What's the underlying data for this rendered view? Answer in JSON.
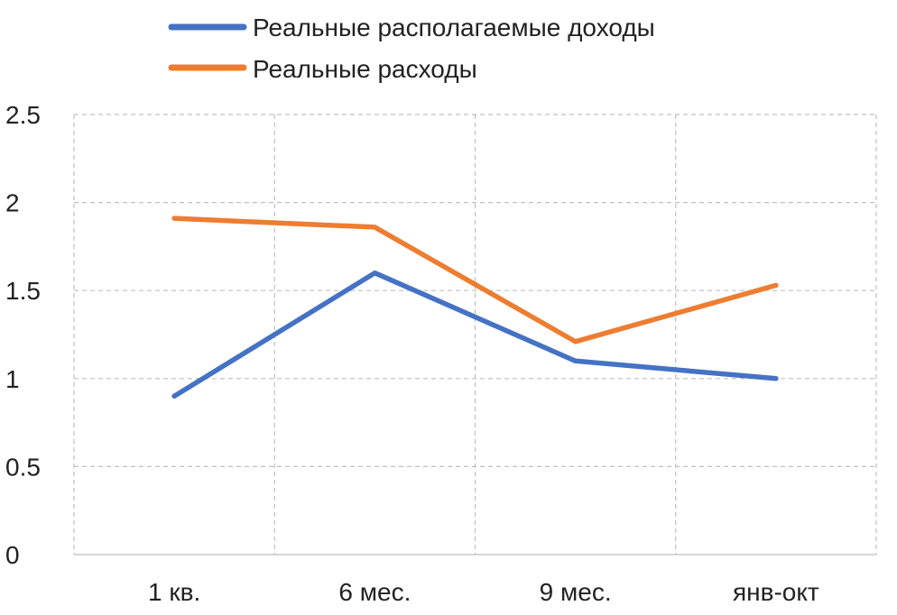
{
  "chart_data": {
    "type": "line",
    "categories": [
      "1 кв.",
      "6 мес.",
      "9 мес.",
      "янв-окт"
    ],
    "series": [
      {
        "name": "Реальные располагаемые доходы",
        "values": [
          0.9,
          1.6,
          1.1,
          1.0
        ],
        "color": "#4472c4"
      },
      {
        "name": "Реальные расходы",
        "values": [
          1.91,
          1.86,
          1.21,
          1.53
        ],
        "color": "#ed7d31"
      }
    ],
    "ylim": [
      0,
      2.5
    ],
    "yticks": [
      "0",
      "0.5",
      "1",
      "1.5",
      "2",
      "2.5"
    ],
    "grid": true,
    "legend_position": "top"
  }
}
